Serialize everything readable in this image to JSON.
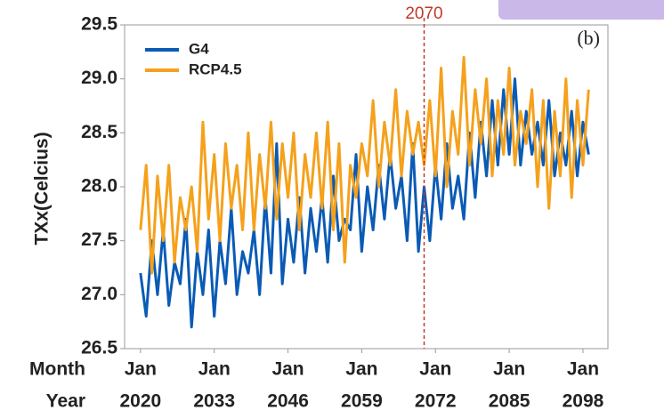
{
  "chart_data": {
    "type": "line",
    "ylabel": "TXx(Celcius)",
    "annotation": "(b)",
    "vline": 2070,
    "vline_color": "#c0392b",
    "x_row_labels": [
      "Month",
      "Year"
    ],
    "xtick_months": [
      "Jan",
      "Jan",
      "Jan",
      "Jan",
      "Jan",
      "Jan",
      "Jan"
    ],
    "xticks": [
      2020,
      2033,
      2046,
      2059,
      2072,
      2085,
      2098
    ],
    "xlim": [
      2017.2,
      2102.4
    ],
    "ylim": [
      26.5,
      29.5
    ],
    "yticks": [
      26.5,
      27.0,
      27.5,
      28.0,
      28.5,
      29.0,
      29.5
    ],
    "legend": "upper left",
    "x": [
      2020,
      2021,
      2022,
      2023,
      2024,
      2025,
      2026,
      2027,
      2028,
      2029,
      2030,
      2031,
      2032,
      2033,
      2034,
      2035,
      2036,
      2037,
      2038,
      2039,
      2040,
      2041,
      2042,
      2043,
      2044,
      2045,
      2046,
      2047,
      2048,
      2049,
      2050,
      2051,
      2052,
      2053,
      2054,
      2055,
      2056,
      2057,
      2058,
      2059,
      2060,
      2061,
      2062,
      2063,
      2064,
      2065,
      2066,
      2067,
      2068,
      2069,
      2070,
      2071,
      2072,
      2073,
      2074,
      2075,
      2076,
      2077,
      2078,
      2079,
      2080,
      2081,
      2082,
      2083,
      2084,
      2085,
      2086,
      2087,
      2088,
      2089,
      2090,
      2091,
      2092,
      2093,
      2094,
      2095,
      2096,
      2097,
      2098,
      2099
    ],
    "series": [
      {
        "name": "G4",
        "color": "#0a5bb5",
        "values": [
          27.2,
          26.8,
          27.5,
          27.0,
          27.6,
          26.9,
          27.3,
          27.1,
          27.7,
          26.7,
          27.4,
          27.0,
          27.6,
          26.8,
          27.5,
          27.1,
          27.8,
          27.0,
          27.4,
          27.2,
          27.6,
          27.0,
          27.9,
          27.2,
          28.4,
          27.1,
          27.7,
          27.3,
          27.9,
          27.2,
          27.8,
          27.4,
          27.9,
          27.3,
          28.1,
          27.5,
          27.7,
          27.6,
          28.3,
          27.4,
          28.0,
          27.6,
          28.2,
          27.7,
          28.3,
          27.8,
          28.1,
          27.5,
          28.4,
          27.4,
          28.0,
          27.5,
          28.2,
          27.7,
          28.4,
          27.8,
          28.1,
          27.7,
          28.5,
          27.9,
          28.6,
          28.1,
          28.8,
          28.2,
          28.9,
          28.3,
          29.0,
          28.2,
          28.7,
          28.3,
          28.6,
          28.2,
          28.8,
          28.1,
          28.5,
          28.2,
          28.7,
          28.1,
          28.6,
          28.3
        ]
      },
      {
        "name": "RCP4.5",
        "color": "#f5a11c",
        "values": [
          27.6,
          28.2,
          27.2,
          28.1,
          27.5,
          28.2,
          27.3,
          27.9,
          27.6,
          28.0,
          27.4,
          28.6,
          27.7,
          28.3,
          27.5,
          28.4,
          27.8,
          28.2,
          27.6,
          28.5,
          27.6,
          28.3,
          27.8,
          28.6,
          27.7,
          28.4,
          27.9,
          28.5,
          27.6,
          28.3,
          27.9,
          28.5,
          27.8,
          28.6,
          27.6,
          28.4,
          27.3,
          28.2,
          27.9,
          28.4,
          28.1,
          28.8,
          28.0,
          28.6,
          28.2,
          28.9,
          28.1,
          28.7,
          28.3,
          28.6,
          28.2,
          28.8,
          28.1,
          29.1,
          28.0,
          28.7,
          28.3,
          29.2,
          28.2,
          28.9,
          28.4,
          29.0,
          28.1,
          28.8,
          28.3,
          29.1,
          28.2,
          28.7,
          28.4,
          28.9,
          28.0,
          28.8,
          27.8,
          28.7,
          28.1,
          29.0,
          27.9,
          28.8,
          28.2,
          28.9
        ]
      }
    ]
  }
}
